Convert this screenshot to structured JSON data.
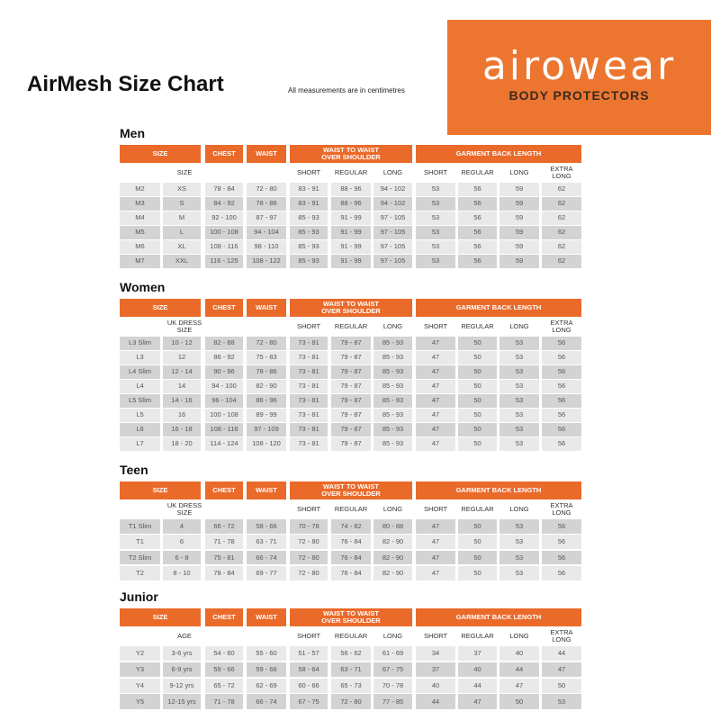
{
  "title": "AirMesh Size Chart",
  "note": "All measurements are in centimetres",
  "logo": {
    "brand": "airowear",
    "tagline": "BODY PROTECTORS"
  },
  "colors": {
    "header_orange": "#ea6a2a",
    "logo_orange": "#ec7530"
  },
  "headers": {
    "size": "SIZE",
    "chest": "CHEST",
    "waist": "WAIST",
    "w2w": "WAIST TO WAIST OVER SHOULDER",
    "gbl": "GARMENT BACK LENGTH"
  },
  "subheaders": {
    "short": "SHORT",
    "regular": "REGULAR",
    "long": "LONG",
    "extra_long": "EXTRA LONG"
  },
  "sections": [
    {
      "title": "Men",
      "second_col": "SIZE",
      "first_dark": false,
      "rows": [
        [
          "M2",
          "XS",
          "78 - 84",
          "72 - 80",
          "83 - 91",
          "88 - 96",
          "94 - 102",
          "53",
          "56",
          "59",
          "62"
        ],
        [
          "M3",
          "S",
          "84 - 92",
          "78 - 86",
          "83 - 91",
          "88 - 96",
          "94 - 102",
          "53",
          "56",
          "59",
          "62"
        ],
        [
          "M4",
          "M",
          "92 - 100",
          "87 - 97",
          "85 - 93",
          "91 - 99",
          "97 - 105",
          "53",
          "56",
          "59",
          "62"
        ],
        [
          "M5",
          "L",
          "100 - 108",
          "94 - 104",
          "85 - 93",
          "91 - 99",
          "97 - 105",
          "53",
          "56",
          "59",
          "62"
        ],
        [
          "M6",
          "XL",
          "108 - 116",
          "98 - 110",
          "85 - 93",
          "91 - 99",
          "97 - 105",
          "53",
          "56",
          "59",
          "62"
        ],
        [
          "M7",
          "XXL",
          "116 - 125",
          "108 - 122",
          "85 - 93",
          "91 - 99",
          "97 - 105",
          "53",
          "56",
          "59",
          "62"
        ]
      ]
    },
    {
      "title": "Women",
      "second_col": "UK DRESS SIZE",
      "first_dark": true,
      "rows": [
        [
          "L3 Slim",
          "10 - 12",
          "82 - 88",
          "72 - 80",
          "73 - 81",
          "79 - 87",
          "85 - 93",
          "47",
          "50",
          "53",
          "56"
        ],
        [
          "L3",
          "12",
          "86 - 92",
          "75 - 83",
          "73 - 81",
          "79 - 87",
          "85 - 93",
          "47",
          "50",
          "53",
          "56"
        ],
        [
          "L4 Slim",
          "12 - 14",
          "90 - 96",
          "78 - 86",
          "73 - 81",
          "79 - 87",
          "85 - 93",
          "47",
          "50",
          "53",
          "56"
        ],
        [
          "L4",
          "14",
          "94 - 100",
          "82 - 90",
          "73 - 81",
          "79 - 87",
          "85 - 93",
          "47",
          "50",
          "53",
          "56"
        ],
        [
          "L5 Slim",
          "14 - 16",
          "96 - 104",
          "86 - 96",
          "73 - 81",
          "79 - 87",
          "85 - 93",
          "47",
          "50",
          "53",
          "56"
        ],
        [
          "L5",
          "16",
          "100 - 108",
          "89 - 99",
          "73 - 81",
          "79 - 87",
          "85 - 93",
          "47",
          "50",
          "53",
          "56"
        ],
        [
          "L6",
          "16 - 18",
          "108 - 116",
          "97 - 109",
          "73 - 81",
          "79 - 87",
          "85 - 93",
          "47",
          "50",
          "53",
          "56"
        ],
        [
          "L7",
          "18 - 20",
          "114 - 124",
          "108 - 120",
          "73 - 81",
          "79 - 87",
          "85 - 93",
          "47",
          "50",
          "53",
          "56"
        ]
      ]
    },
    {
      "title": "Teen",
      "second_col": "UK DRESS SIZE",
      "first_dark": true,
      "rows": [
        [
          "T1 Slim",
          "4",
          "66 - 72",
          "58 - 66",
          "70 - 78",
          "74 - 82",
          "80 - 88",
          "47",
          "50",
          "53",
          "56"
        ],
        [
          "T1",
          "6",
          "71 - 78",
          "63 - 71",
          "72 - 80",
          "76 - 84",
          "82 - 90",
          "47",
          "50",
          "53",
          "56"
        ],
        [
          "T2 Slim",
          "6 - 8",
          "75 - 81",
          "66 - 74",
          "72 - 80",
          "76 - 84",
          "82 - 90",
          "47",
          "50",
          "53",
          "56"
        ],
        [
          "T2",
          "8 - 10",
          "78 - 84",
          "69 - 77",
          "72 - 80",
          "76 - 84",
          "82 - 90",
          "47",
          "50",
          "53",
          "56"
        ]
      ]
    },
    {
      "title": "Junior",
      "second_col": "AGE",
      "first_dark": false,
      "rows": [
        [
          "Y2",
          "3-6 yrs",
          "54 - 60",
          "55 - 60",
          "51 - 57",
          "56 - 62",
          "61 - 69",
          "34",
          "37",
          "40",
          "44"
        ],
        [
          "Y3",
          "6-9 yrs",
          "59 - 66",
          "59 - 66",
          "58 - 64",
          "63 - 71",
          "67 - 75",
          "37",
          "40",
          "44",
          "47"
        ],
        [
          "Y4",
          "9-12 yrs",
          "65 - 72",
          "62 - 69",
          "60 - 66",
          "65 - 73",
          "70 - 78",
          "40",
          "44",
          "47",
          "50"
        ],
        [
          "Y5",
          "12-15 yrs",
          "71 - 78",
          "66 - 74",
          "67 - 75",
          "72 - 80",
          "77 - 85",
          "44",
          "47",
          "50",
          "53"
        ]
      ]
    }
  ]
}
